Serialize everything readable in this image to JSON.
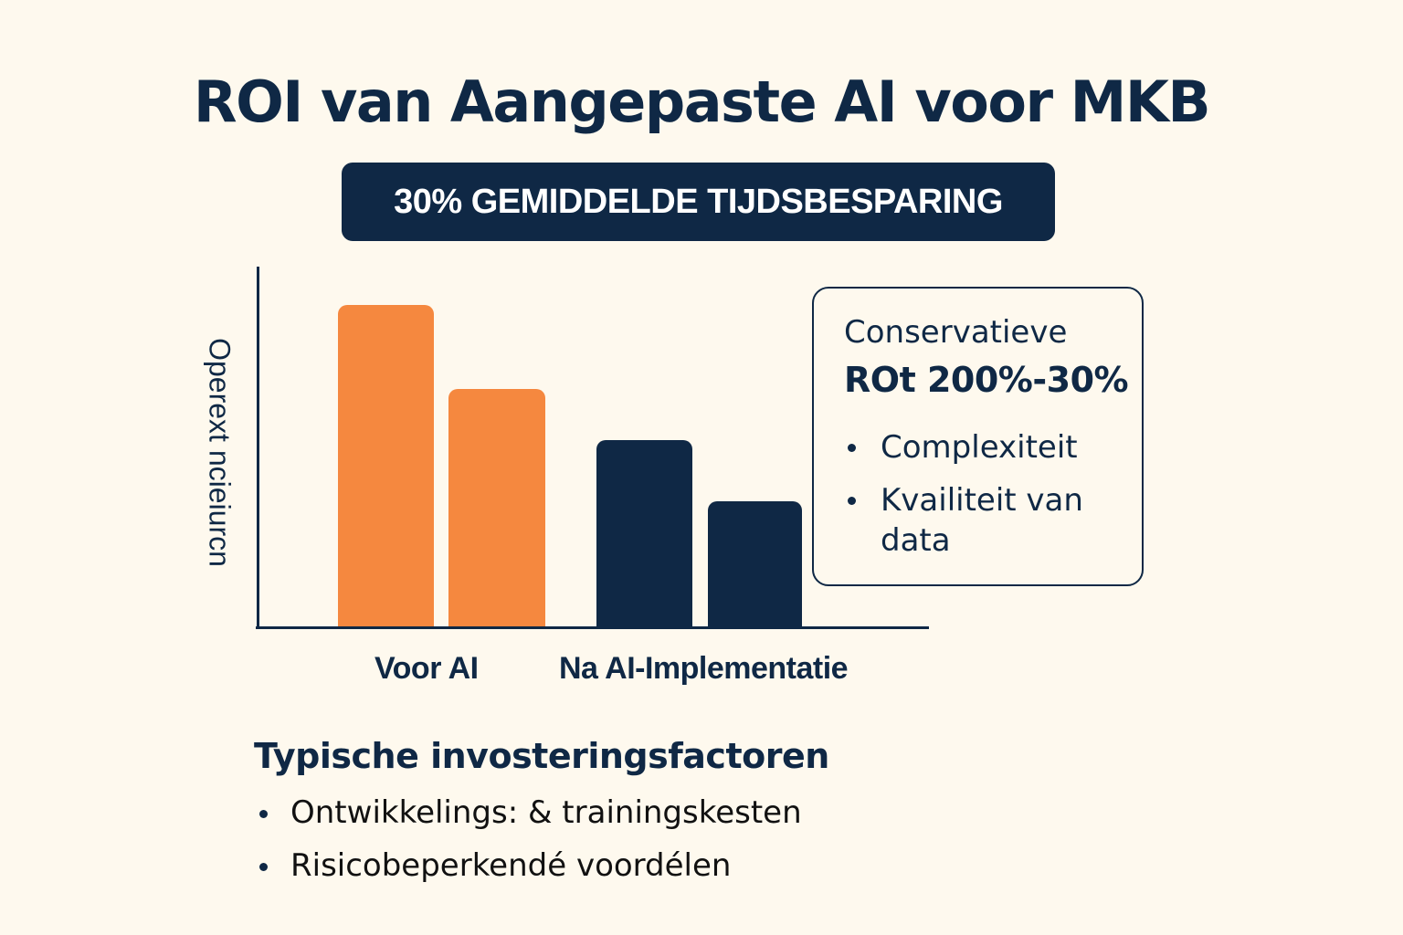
{
  "header": {
    "title": "ROI van Aangepaste AI voor MKB",
    "badge": "30% GEMIDDELDE TIJDSBESPARING"
  },
  "colors": {
    "background": "#FEF9EE",
    "navy": "#0F2845",
    "orange": "#F5883F"
  },
  "chart_data": {
    "type": "bar",
    "title": "ROI van Aangepaste AI voor MKB",
    "subtitle": "30% GEMIDDELDE TIJDSBESPARING",
    "xlabel": "",
    "ylabel": "Operext ncieiurcn",
    "categories": [
      "Voor AI",
      "Na AI-Implementatie"
    ],
    "series": [
      {
        "name": "Bar 1",
        "values": [
          100,
          58
        ],
        "colors": [
          "#F5883F",
          "#0F2845"
        ]
      },
      {
        "name": "Bar 2",
        "values": [
          74,
          39
        ],
        "colors": [
          "#F5883F",
          "#0F2845"
        ]
      }
    ],
    "bars_in_order": [
      {
        "group": "Voor AI",
        "value": 100,
        "color": "#F5883F"
      },
      {
        "group": "Voor AI",
        "value": 74,
        "color": "#F5883F"
      },
      {
        "group": "Na AI-Implementatie",
        "value": 58,
        "color": "#0F2845"
      },
      {
        "group": "Na AI-Implementatie",
        "value": 39,
        "color": "#0F2845"
      }
    ],
    "ylim": [
      0,
      112
    ],
    "grid": false,
    "tick_labels_y": [],
    "legend": null,
    "annotations": [
      "Conservatieve ROt 200%-30%"
    ]
  },
  "callout": {
    "line1": "Conservatieve",
    "line2": "ROt 200%-30%",
    "items": [
      "Complexiteit",
      "Kvailiteit van data"
    ]
  },
  "factors": {
    "title": "Typische invosteringsfactoren",
    "items": [
      "Ontwikkelings: & trainingskesten",
      "Risicobeperkendé voordélen"
    ]
  }
}
